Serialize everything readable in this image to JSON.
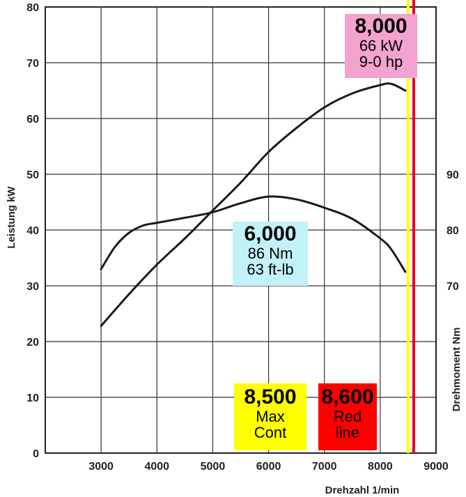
{
  "chart_data": {
    "type": "line",
    "xlabel": "Drehzahl 1/min",
    "ylabel_left": "Leistung kW",
    "ylabel_right": "Drehmoment Nm",
    "xlim": [
      2000,
      9000
    ],
    "ylim_left": [
      0,
      80
    ],
    "ylim_right_ticks": [
      "70",
      "80",
      "90"
    ],
    "x_ticks": [
      "3000",
      "4000",
      "5000",
      "6000",
      "7000",
      "8000",
      "9000"
    ],
    "y_ticks_left": [
      "0",
      "10",
      "20",
      "30",
      "40",
      "50",
      "60",
      "70",
      "80"
    ],
    "grid": true,
    "series": [
      {
        "axis": "left",
        "x": [
          3000,
          3500,
          4000,
          4500,
          5000,
          5500,
          6000,
          6500,
          7000,
          7500,
          8000,
          8200,
          8450
        ],
        "y": [
          22.8,
          28.5,
          33.8,
          38.5,
          43.5,
          48.5,
          54,
          58.3,
          62,
          64.5,
          66,
          66.2,
          65
        ]
      },
      {
        "axis": "left",
        "x": [
          3000,
          3250,
          3500,
          3750,
          4000,
          4500,
          5000,
          5500,
          6000,
          6500,
          7000,
          7500,
          8000,
          8200,
          8450
        ],
        "y": [
          33,
          37,
          39.5,
          40.8,
          41.3,
          42.2,
          43.2,
          44.8,
          46,
          45.5,
          44,
          42,
          38.5,
          36.5,
          32.5
        ]
      }
    ],
    "markers": [
      {
        "x": 8500,
        "color": "#ffff00"
      },
      {
        "x": 8600,
        "color": "#e8001c"
      }
    ],
    "annotations": {
      "power": {
        "value": "8,000",
        "line1": "66 kW",
        "line2": "9-0 hp",
        "color": "#f3a3cf"
      },
      "torque": {
        "value": "6,000",
        "line1": "86 Nm",
        "line2": "63 ft-lb",
        "color": "#c3f1f8"
      },
      "maxcont": {
        "value": "8,500",
        "line1": "Max",
        "line2": "Cont",
        "color": "#ffff00"
      },
      "redline": {
        "value": "8,600",
        "line1": "Red",
        "line2": "line",
        "color": "#ff0000"
      }
    }
  }
}
